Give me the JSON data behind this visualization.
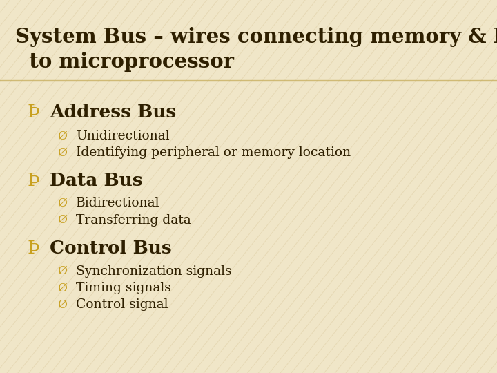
{
  "title_line1": "System Bus – wires connecting memory & I/O",
  "title_line2": "  to microprocessor",
  "title_color": "#2e1f00",
  "title_fontsize": 21,
  "bg_color": "#f0e6c8",
  "stripe_color": "#d4c090",
  "divider_color": "#c8b060",
  "bullet1": "Address Bus",
  "sub1a": "Unidirectional",
  "sub1b": "Identifying peripheral or memory location",
  "bullet2": "Data Bus",
  "sub2a": "Bidirectional",
  "sub2b": "Transferring data",
  "bullet3": "Control Bus",
  "sub3a": "Synchronization signals",
  "sub3b": "Timing signals",
  "sub3c": "Control signal",
  "bullet_color": "#2e1f00",
  "sub_color": "#2e1f00",
  "symbol_color": "#c8a020",
  "bullet_fontsize": 19,
  "sub_fontsize": 13.5,
  "figwidth": 7.2,
  "figheight": 5.4,
  "dpi": 100
}
